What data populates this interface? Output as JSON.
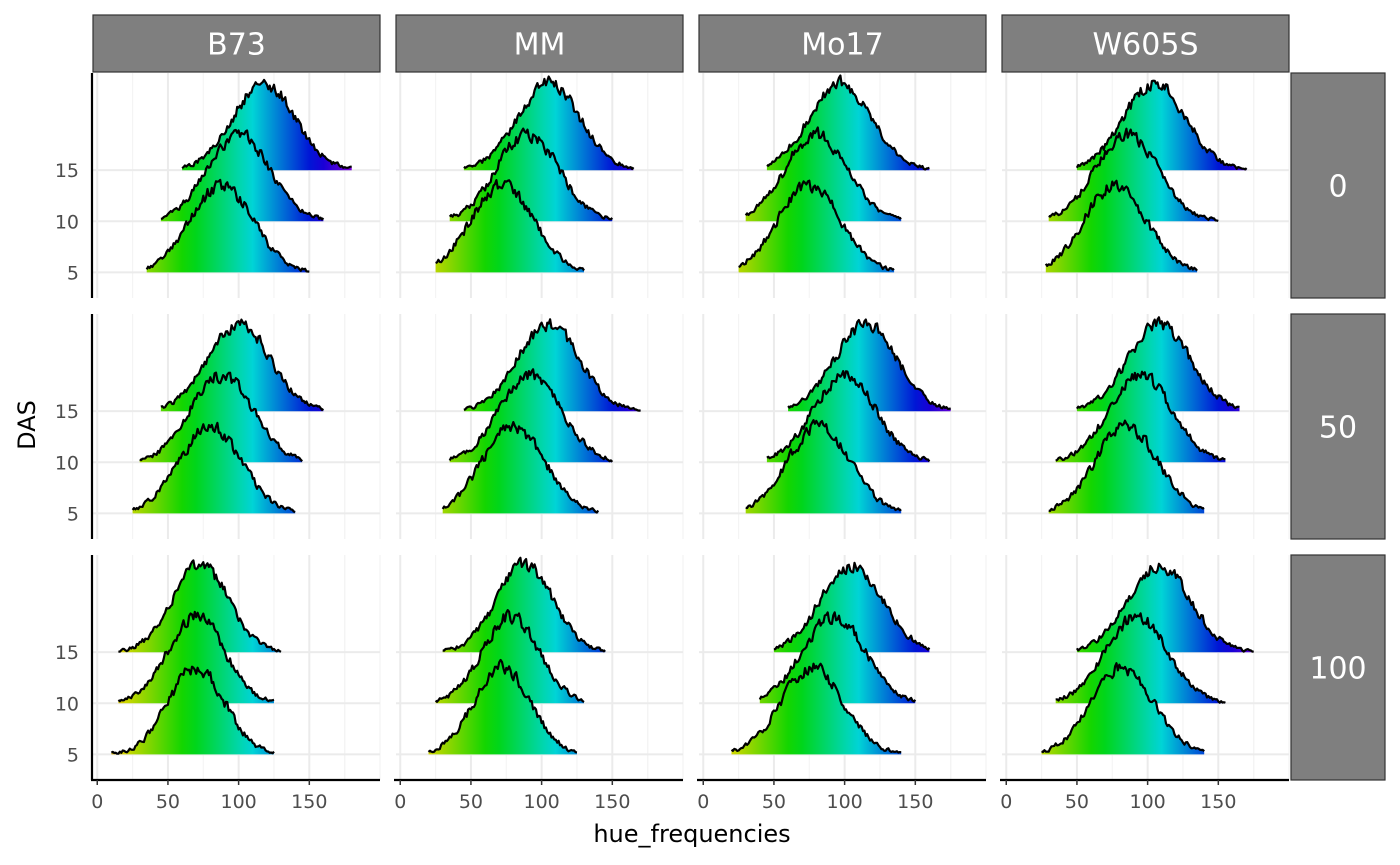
{
  "chart_data": {
    "type": "ridgeline",
    "xlabel": "hue_frequencies",
    "ylabel": "DAS",
    "xlim": [
      -3,
      200
    ],
    "x_ticks": [
      0,
      50,
      100,
      150
    ],
    "x_tick_labels": [
      "0",
      "50",
      "100",
      "150"
    ],
    "y_ticks": [
      5,
      10,
      15
    ],
    "y_tick_labels": [
      "5",
      "10",
      "15"
    ],
    "ylim": [
      2.5,
      24.5
    ],
    "ridge_height": 8.5,
    "fill": "hue gradient (x value mapped to hue)",
    "grid": true,
    "col_facets": [
      "B73",
      "MM",
      "Mo17",
      "W605S"
    ],
    "row_facets": [
      "0",
      "50",
      "100"
    ],
    "panels": [
      {
        "col": "B73",
        "row": "0",
        "ridges": [
          {
            "das": 5,
            "center": 88,
            "sd": 22,
            "min": 35,
            "max": 150
          },
          {
            "das": 10,
            "center": 100,
            "sd": 22,
            "min": 45,
            "max": 160
          },
          {
            "das": 15,
            "center": 118,
            "sd": 22,
            "min": 60,
            "max": 180
          }
        ]
      },
      {
        "col": "MM",
        "row": "0",
        "ridges": [
          {
            "das": 5,
            "center": 72,
            "sd": 22,
            "min": 25,
            "max": 130
          },
          {
            "das": 10,
            "center": 90,
            "sd": 22,
            "min": 35,
            "max": 150
          },
          {
            "das": 15,
            "center": 105,
            "sd": 22,
            "min": 45,
            "max": 165
          }
        ]
      },
      {
        "col": "Mo17",
        "row": "0",
        "ridges": [
          {
            "das": 5,
            "center": 75,
            "sd": 22,
            "min": 25,
            "max": 135
          },
          {
            "das": 10,
            "center": 80,
            "sd": 22,
            "min": 30,
            "max": 140
          },
          {
            "das": 15,
            "center": 97,
            "sd": 22,
            "min": 45,
            "max": 160
          }
        ]
      },
      {
        "col": "W605S",
        "row": "0",
        "ridges": [
          {
            "das": 5,
            "center": 77,
            "sd": 22,
            "min": 28,
            "max": 135
          },
          {
            "das": 10,
            "center": 85,
            "sd": 22,
            "min": 30,
            "max": 150
          },
          {
            "das": 15,
            "center": 105,
            "sd": 22,
            "min": 50,
            "max": 170
          }
        ]
      },
      {
        "col": "B73",
        "row": "50",
        "ridges": [
          {
            "das": 5,
            "center": 80,
            "sd": 22,
            "min": 25,
            "max": 140
          },
          {
            "das": 10,
            "center": 88,
            "sd": 22,
            "min": 30,
            "max": 145
          },
          {
            "das": 15,
            "center": 100,
            "sd": 22,
            "min": 45,
            "max": 160
          }
        ]
      },
      {
        "col": "MM",
        "row": "50",
        "ridges": [
          {
            "das": 5,
            "center": 80,
            "sd": 22,
            "min": 30,
            "max": 140
          },
          {
            "das": 10,
            "center": 92,
            "sd": 22,
            "min": 35,
            "max": 150
          },
          {
            "das": 15,
            "center": 105,
            "sd": 22,
            "min": 45,
            "max": 170
          }
        ]
      },
      {
        "col": "Mo17",
        "row": "50",
        "ridges": [
          {
            "das": 5,
            "center": 82,
            "sd": 22,
            "min": 30,
            "max": 140
          },
          {
            "das": 10,
            "center": 100,
            "sd": 22,
            "min": 45,
            "max": 160
          },
          {
            "das": 15,
            "center": 115,
            "sd": 22,
            "min": 60,
            "max": 175
          }
        ]
      },
      {
        "col": "W605S",
        "row": "50",
        "ridges": [
          {
            "das": 5,
            "center": 85,
            "sd": 22,
            "min": 30,
            "max": 140
          },
          {
            "das": 10,
            "center": 95,
            "sd": 22,
            "min": 35,
            "max": 155
          },
          {
            "das": 15,
            "center": 108,
            "sd": 22,
            "min": 50,
            "max": 165
          }
        ]
      },
      {
        "col": "B73",
        "row": "100",
        "ridges": [
          {
            "das": 5,
            "center": 70,
            "sd": 20,
            "min": 10,
            "max": 125
          },
          {
            "das": 10,
            "center": 70,
            "sd": 20,
            "min": 15,
            "max": 125
          },
          {
            "das": 15,
            "center": 73,
            "sd": 20,
            "min": 15,
            "max": 130
          }
        ]
      },
      {
        "col": "MM",
        "row": "100",
        "ridges": [
          {
            "das": 5,
            "center": 72,
            "sd": 20,
            "min": 20,
            "max": 125
          },
          {
            "das": 10,
            "center": 78,
            "sd": 20,
            "min": 25,
            "max": 130
          },
          {
            "das": 15,
            "center": 88,
            "sd": 20,
            "min": 30,
            "max": 145
          }
        ]
      },
      {
        "col": "Mo17",
        "row": "100",
        "ridges": [
          {
            "das": 5,
            "center": 77,
            "sd": 22,
            "min": 20,
            "max": 140
          },
          {
            "das": 10,
            "center": 92,
            "sd": 22,
            "min": 40,
            "max": 150
          },
          {
            "das": 15,
            "center": 105,
            "sd": 22,
            "min": 50,
            "max": 160
          }
        ]
      },
      {
        "col": "W605S",
        "row": "100",
        "ridges": [
          {
            "das": 5,
            "center": 82,
            "sd": 22,
            "min": 25,
            "max": 140
          },
          {
            "das": 10,
            "center": 92,
            "sd": 22,
            "min": 35,
            "max": 155
          },
          {
            "das": 15,
            "center": 108,
            "sd": 22,
            "min": 50,
            "max": 175
          }
        ]
      }
    ]
  },
  "colors": {
    "strip_fill": "#7f7f7f",
    "strip_border": "#333333",
    "strip_text": "#ffffff",
    "grid_major": "#ebebeb",
    "grid_minor": "#f4f4f4",
    "axis_line": "#000000",
    "ridge_outline": "#000000"
  }
}
